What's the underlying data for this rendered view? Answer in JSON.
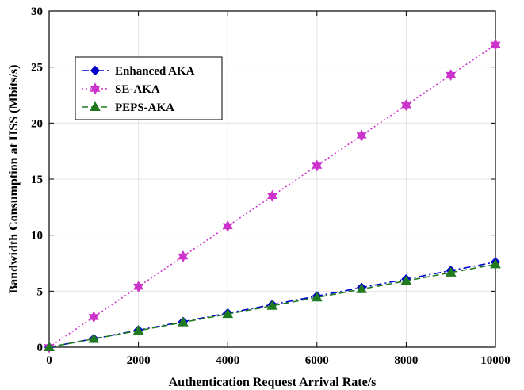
{
  "chart_data": {
    "type": "line",
    "title": "",
    "xlabel": "Authentication Request Arrival Rate/s",
    "ylabel": "Bandwidth Consumption at HSS (Mbits/s)",
    "xlim": [
      0,
      10000
    ],
    "ylim": [
      0,
      30
    ],
    "xticks": [
      0,
      2000,
      4000,
      6000,
      8000,
      10000
    ],
    "yticks": [
      0,
      5,
      10,
      15,
      20,
      25,
      30
    ],
    "grid": true,
    "legend_position": "top-left",
    "x": [
      0,
      1000,
      2000,
      3000,
      4000,
      5000,
      6000,
      7000,
      8000,
      9000,
      10000
    ],
    "series": [
      {
        "name": "Enhanced AKA",
        "color": "#0000cc",
        "line_style": "dash-dot",
        "marker": "diamond",
        "values": [
          0,
          0.76,
          1.52,
          2.28,
          3.04,
          3.8,
          4.56,
          5.32,
          6.08,
          6.84,
          7.6
        ]
      },
      {
        "name": "SE-AKA",
        "color": "#cc33cc",
        "line_style": "dotted",
        "marker": "hexagram",
        "values": [
          0,
          2.7,
          5.4,
          8.1,
          10.8,
          13.5,
          16.2,
          18.9,
          21.6,
          24.3,
          27.0
        ]
      },
      {
        "name": "PEPS-AKA",
        "color": "#1f7a1f",
        "line_style": "dashed",
        "marker": "triangle",
        "values": [
          0,
          0.74,
          1.48,
          2.22,
          2.96,
          3.7,
          4.44,
          5.18,
          5.92,
          6.66,
          7.4
        ]
      }
    ]
  }
}
